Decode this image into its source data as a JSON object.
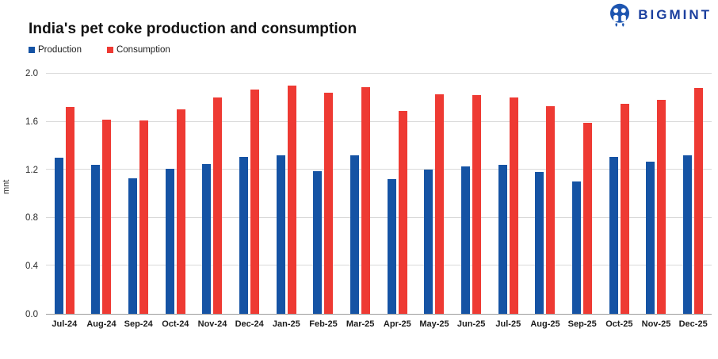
{
  "header": {
    "brand": "BIGMINT"
  },
  "colors": {
    "production_blue": "#1553a4",
    "consumption_red": "#ee3a33",
    "brand_navy": "#1b3f9e",
    "logo_blue": "#1d55b0",
    "gridline": "#d9d9d9",
    "axis_line": "#9d9d9d"
  },
  "chart_data": {
    "type": "bar",
    "title": "India's pet coke production and consumption",
    "ylabel": "mnt",
    "xlabel": "",
    "ylim": [
      0,
      2.0
    ],
    "yticks": [
      0.0,
      0.4,
      0.8,
      1.2,
      1.6,
      2.0
    ],
    "ytick_labels": [
      "0.0",
      "0.4",
      "0.8",
      "1.2",
      "1.6",
      "2.0"
    ],
    "grid": true,
    "legend_position": "top-left",
    "categories": [
      "Jul-24",
      "Aug-24",
      "Sep-24",
      "Oct-24",
      "Nov-24",
      "Dec-24",
      "Jan-25",
      "Feb-25",
      "Mar-25",
      "Apr-25",
      "May-25",
      "Jun-25",
      "Jul-25",
      "Aug-25",
      "Sep-25",
      "Oct-25",
      "Nov-25",
      "Dec-25"
    ],
    "series": [
      {
        "name": "Production",
        "color": "#1553a4",
        "values": [
          1.3,
          1.24,
          1.13,
          1.21,
          1.25,
          1.31,
          1.32,
          1.19,
          1.32,
          1.12,
          1.2,
          1.23,
          1.24,
          1.18,
          1.1,
          1.31,
          1.27,
          1.32
        ]
      },
      {
        "name": "Consumption",
        "color": "#ee3a33",
        "values": [
          1.72,
          1.62,
          1.61,
          1.7,
          1.8,
          1.87,
          1.9,
          1.84,
          1.89,
          1.69,
          1.83,
          1.82,
          1.8,
          1.73,
          1.59,
          1.75,
          1.78,
          1.88
        ]
      }
    ]
  }
}
